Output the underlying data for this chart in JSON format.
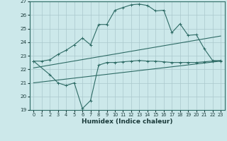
{
  "xlabel": "Humidex (Indice chaleur)",
  "bg_color": "#cce8ea",
  "grid_color": "#aac8cc",
  "line_color": "#2e6b65",
  "xlim": [
    -0.5,
    23.5
  ],
  "ylim": [
    19,
    27
  ],
  "xticks": [
    0,
    1,
    2,
    3,
    4,
    5,
    6,
    7,
    8,
    9,
    10,
    11,
    12,
    13,
    14,
    15,
    16,
    17,
    18,
    19,
    20,
    21,
    22,
    23
  ],
  "yticks": [
    19,
    20,
    21,
    22,
    23,
    24,
    25,
    26,
    27
  ],
  "line1_x": [
    0,
    1,
    2,
    3,
    4,
    5,
    6,
    7,
    8,
    9,
    10,
    11,
    12,
    13,
    14,
    15,
    16,
    17,
    18,
    19,
    20,
    21,
    22,
    23
  ],
  "line1_y": [
    22.6,
    22.6,
    22.7,
    23.1,
    23.4,
    23.8,
    24.3,
    23.8,
    25.3,
    25.3,
    26.35,
    26.55,
    26.75,
    26.8,
    26.7,
    26.3,
    26.35,
    24.7,
    25.35,
    24.5,
    24.55,
    23.5,
    22.65,
    22.6
  ],
  "line2_x": [
    0,
    23
  ],
  "line2_y": [
    22.1,
    24.45
  ],
  "line3_x": [
    0,
    23
  ],
  "line3_y": [
    21.0,
    22.6
  ],
  "line4_x": [
    0,
    2,
    3,
    4,
    5,
    6,
    7,
    8,
    9,
    10,
    11,
    12,
    13,
    14,
    15,
    16,
    17,
    18,
    19,
    20,
    21,
    22,
    23
  ],
  "line4_y": [
    22.6,
    21.6,
    21.0,
    20.8,
    21.0,
    19.1,
    19.7,
    22.3,
    22.5,
    22.5,
    22.55,
    22.6,
    22.65,
    22.6,
    22.6,
    22.55,
    22.5,
    22.5,
    22.5,
    22.5,
    22.55,
    22.6,
    22.65
  ]
}
